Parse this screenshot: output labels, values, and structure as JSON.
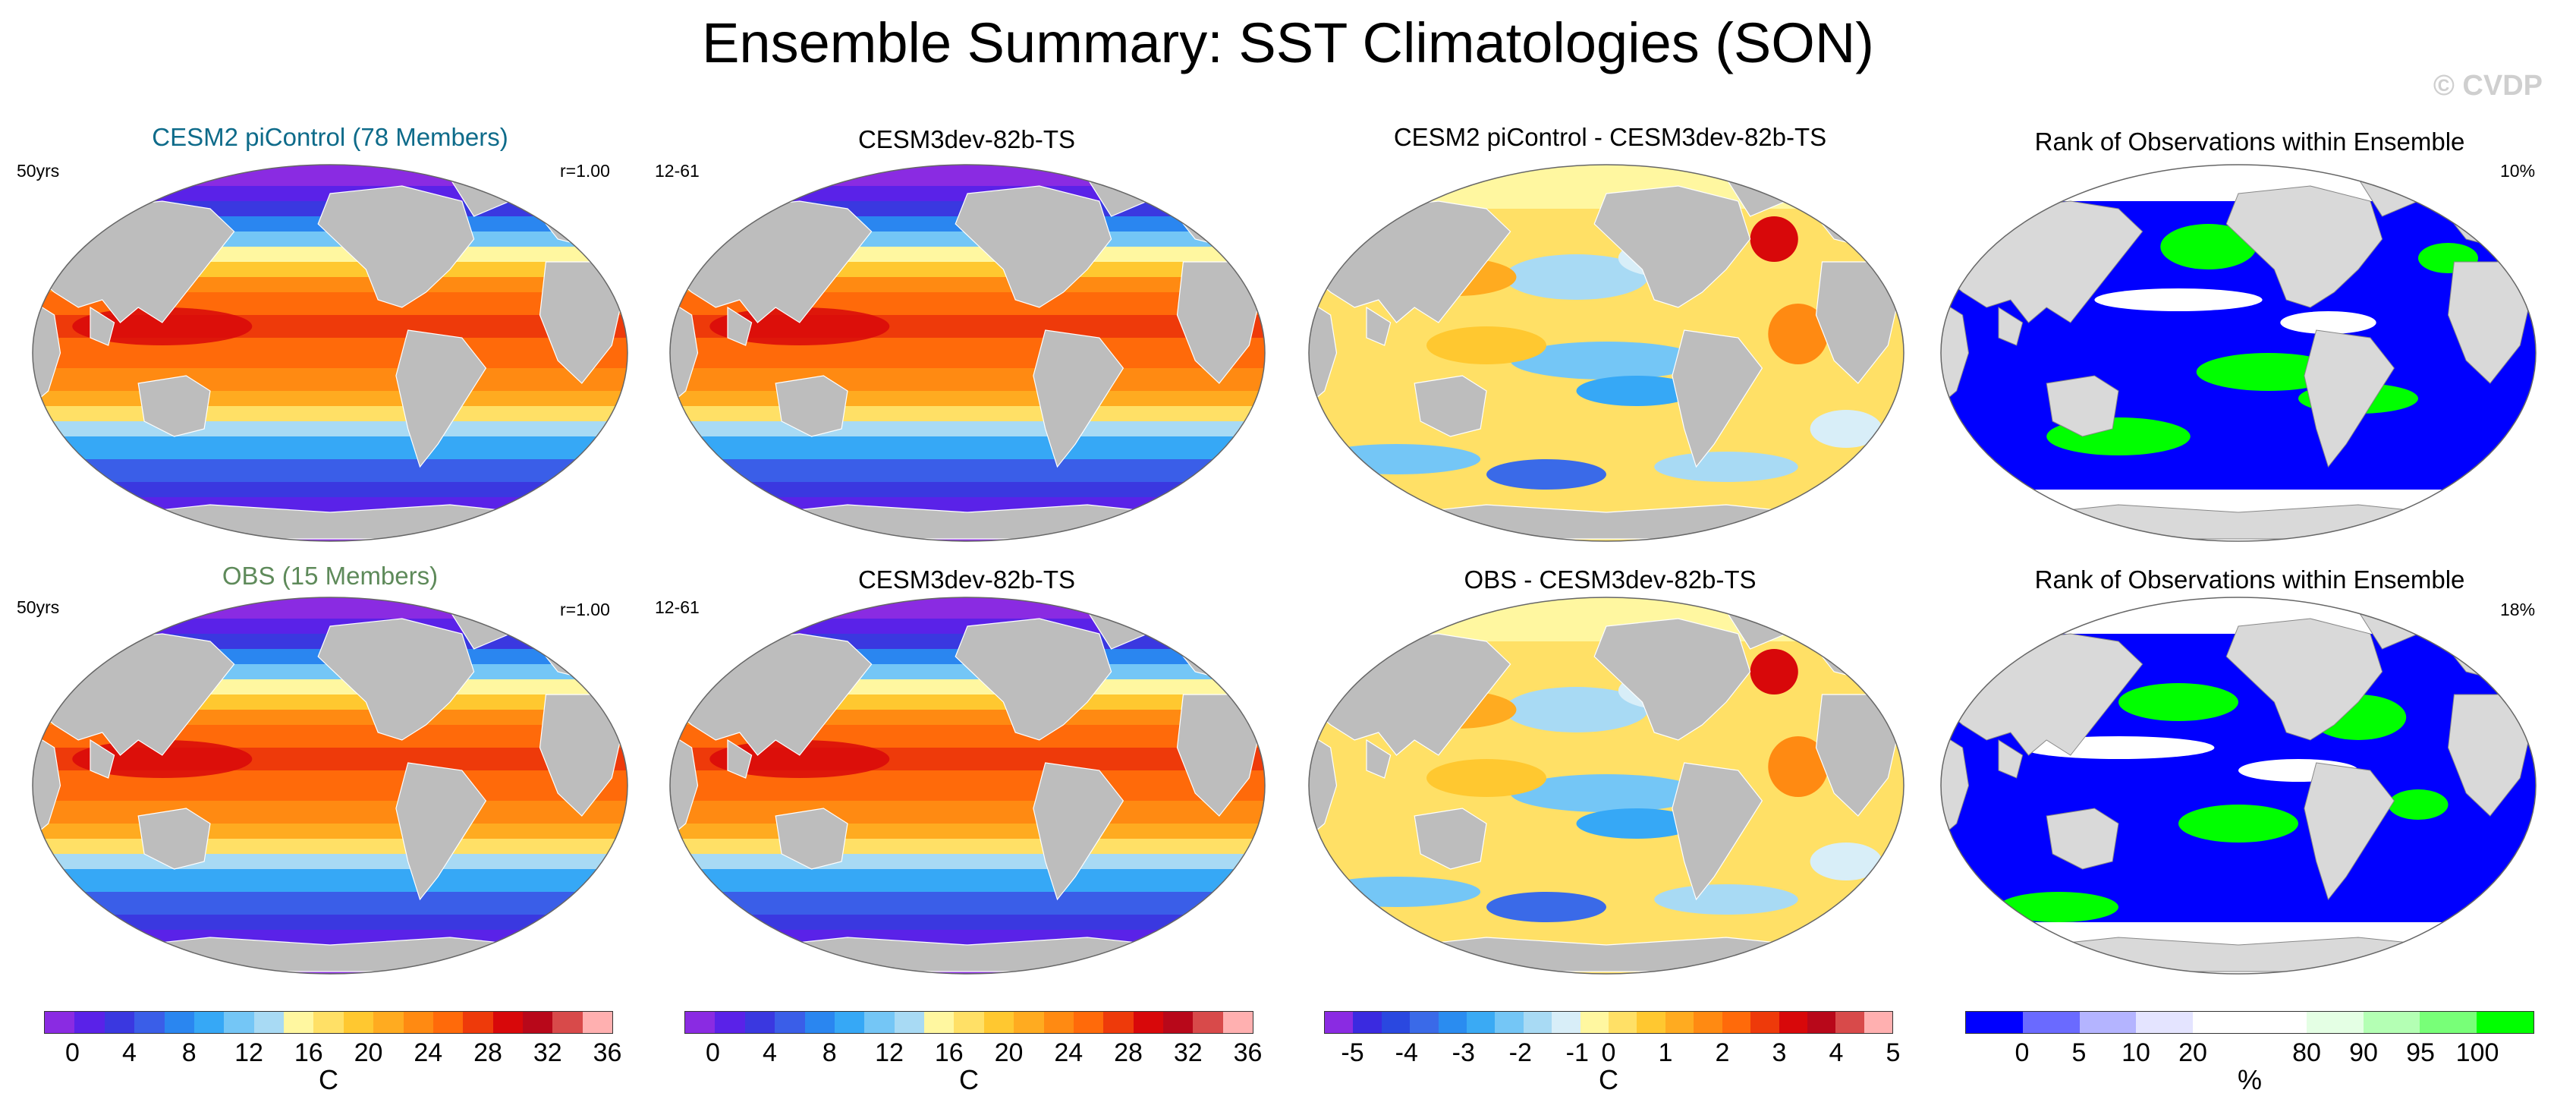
{
  "title": "Ensemble Summary: SST Climatologies (SON)",
  "copyright": "© CVDP",
  "panels": {
    "p1": {
      "title": "CESM2 piControl (78 Members)",
      "title_color": "#0e6b8a",
      "left": "50yrs",
      "right": "r=1.00",
      "type": "sst"
    },
    "p2": {
      "title": "CESM3dev-82b-TS",
      "title_color": "#000000",
      "left": "12-61",
      "right": "",
      "type": "sst"
    },
    "p3": {
      "title": "CESM2 piControl - CESM3dev-82b-TS",
      "title_color": "#000000",
      "left": "",
      "right": "",
      "type": "diff"
    },
    "p4": {
      "title": "Rank of Observations within Ensemble",
      "title_color": "#000000",
      "left": "",
      "right": "10%",
      "type": "rank"
    },
    "p5": {
      "title": "OBS (15 Members)",
      "title_color": "#5e8a5a",
      "left": "50yrs",
      "right": "r=1.00",
      "type": "sst"
    },
    "p6": {
      "title": "CESM3dev-82b-TS",
      "title_color": "#000000",
      "left": "12-61",
      "right": "",
      "type": "sst"
    },
    "p7": {
      "title": "OBS - CESM3dev-82b-TS",
      "title_color": "#000000",
      "left": "",
      "right": "",
      "type": "diff"
    },
    "p8": {
      "title": "Rank of Observations within Ensemble",
      "title_color": "#000000",
      "left": "",
      "right": "18%",
      "type": "rank"
    }
  },
  "colorbars": {
    "sst": {
      "colors": [
        "#8a2be2",
        "#5a22e8",
        "#3a38e0",
        "#3a5ee8",
        "#2a86f0",
        "#36a8f6",
        "#74c6f6",
        "#a8daf4",
        "#fff7a0",
        "#ffe066",
        "#ffc830",
        "#ffab20",
        "#ff8a12",
        "#ff6a0a",
        "#ee3a0a",
        "#d8080a",
        "#b8081a",
        "#d84a4a",
        "#ffb0b0"
      ],
      "ticks": [
        "0",
        "4",
        "8",
        "12",
        "16",
        "20",
        "24",
        "28",
        "32",
        "36"
      ],
      "unit": "C"
    },
    "sst2": {
      "ticks": [
        "0",
        "4",
        "8",
        "12",
        "16",
        "20",
        "24",
        "28",
        "32",
        "36"
      ],
      "unit": "C"
    },
    "diff": {
      "colors": [
        "#8a2be2",
        "#3a2ae0",
        "#2a48e0",
        "#3a6ae8",
        "#2a8cf0",
        "#3aaaf4",
        "#74c6f6",
        "#a8daf4",
        "#d8eef8",
        "#fff7a0",
        "#ffe066",
        "#ffc830",
        "#ffab20",
        "#ff8a12",
        "#ff6a0a",
        "#ee3a0a",
        "#d8080a",
        "#b8081a",
        "#d84a4a",
        "#ffb0b0"
      ],
      "ticks": [
        "-5",
        "-4",
        "-3",
        "-2",
        "-1",
        "0",
        "1",
        "2",
        "3",
        "4",
        "5"
      ],
      "unit": "C"
    },
    "rank": {
      "colors": [
        "#0000ff",
        "#6a6aff",
        "#b4b4ff",
        "#e4e4ff",
        "#ffffff",
        "#ffffff",
        "#e4ffe4",
        "#b4ffb4",
        "#78ff78",
        "#00ff00"
      ],
      "ticks": [
        "0",
        "5",
        "10",
        "20",
        "80",
        "90",
        "95",
        "100"
      ],
      "unit": "%"
    }
  },
  "colors": {
    "land": "#bdbdbd",
    "rank_land": "#d9d9d9"
  }
}
